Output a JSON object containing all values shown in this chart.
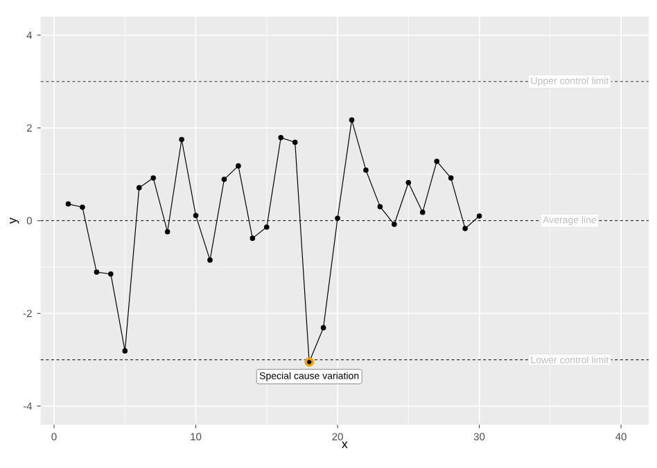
{
  "chart_data": {
    "type": "line",
    "xlabel": "x",
    "ylabel": "y",
    "x": [
      1,
      2,
      3,
      4,
      5,
      6,
      7,
      8,
      9,
      10,
      11,
      12,
      13,
      14,
      15,
      16,
      17,
      18,
      19,
      20,
      21,
      22,
      23,
      24,
      25,
      26,
      27,
      28,
      29,
      30
    ],
    "series": [
      {
        "color": "#000000",
        "marker": "circle",
        "values": [
          0.36,
          0.29,
          -1.11,
          -1.15,
          -2.81,
          0.71,
          0.92,
          -0.24,
          1.75,
          0.11,
          -0.85,
          0.89,
          1.18,
          -0.38,
          -0.14,
          1.79,
          1.69,
          -3.05,
          -2.31,
          0.05,
          2.17,
          1.09,
          0.3,
          -0.08,
          0.82,
          0.18,
          1.28,
          0.92,
          -0.17,
          0.1
        ]
      },
      {
        "type": "scatter",
        "color": "#f0a30a",
        "marker": "circle",
        "x": [
          18
        ],
        "values": [
          -3.05
        ]
      }
    ],
    "xlim": [
      -0.95,
      41.95
    ],
    "ylim": [
      -4.4,
      4.4
    ],
    "xticks": [
      0,
      10,
      20,
      30,
      40
    ],
    "yticks": [
      -4,
      -2,
      0,
      2,
      4
    ],
    "grid": true,
    "ref_lines": [
      {
        "axis": "y",
        "value": 3,
        "label": "Upper control limit",
        "color": "#333333",
        "line_style": "dashed"
      },
      {
        "axis": "y",
        "value": 0,
        "label": "Average line",
        "color": "#333333",
        "line_style": "dashed"
      },
      {
        "axis": "y",
        "value": -3,
        "label": "Lower control limit",
        "color": "#333333",
        "line_style": "dashed"
      }
    ],
    "annotations": [
      {
        "text": "Special cause variation",
        "x": 18,
        "y": -3.05
      }
    ]
  }
}
